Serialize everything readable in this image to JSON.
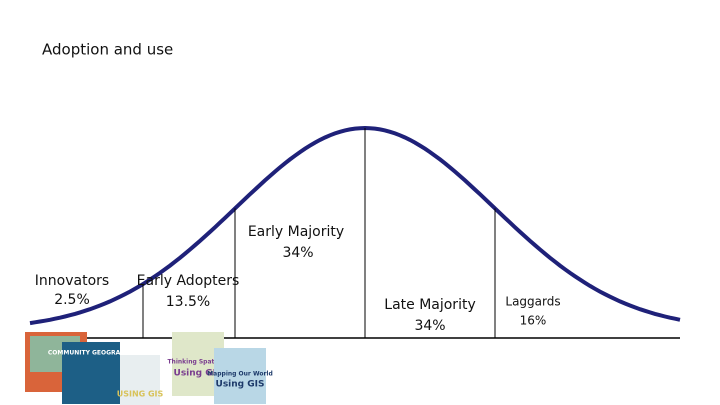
{
  "header": {
    "title": "Adoption and use"
  },
  "segments": [
    {
      "label": "Innovators",
      "share": "2.5%"
    },
    {
      "label": "Early Adopters",
      "share": "13.5%"
    },
    {
      "label": "Early Majority",
      "share": "34%"
    },
    {
      "label": "Late Majority",
      "share": "34%"
    },
    {
      "label": "Laggards",
      "share": "16%"
    }
  ],
  "covers": [
    {
      "title": "COMMUNITY GEOGRAPHY"
    },
    {
      "title": "USING GIS"
    },
    {
      "title": "Thinking Spatially"
    },
    {
      "title": "Using GIS"
    },
    {
      "title": "Mapping Our World"
    },
    {
      "title": "Using GIS"
    }
  ]
}
